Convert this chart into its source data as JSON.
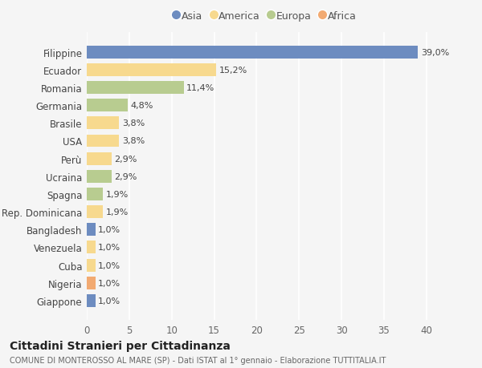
{
  "categories": [
    "Filippine",
    "Ecuador",
    "Romania",
    "Germania",
    "Brasile",
    "USA",
    "Perù",
    "Ucraina",
    "Spagna",
    "Rep. Dominicana",
    "Bangladesh",
    "Venezuela",
    "Cuba",
    "Nigeria",
    "Giappone"
  ],
  "values": [
    39.0,
    15.2,
    11.4,
    4.8,
    3.8,
    3.8,
    2.9,
    2.9,
    1.9,
    1.9,
    1.0,
    1.0,
    1.0,
    1.0,
    1.0
  ],
  "labels": [
    "39,0%",
    "15,2%",
    "11,4%",
    "4,8%",
    "3,8%",
    "3,8%",
    "2,9%",
    "2,9%",
    "1,9%",
    "1,9%",
    "1,0%",
    "1,0%",
    "1,0%",
    "1,0%",
    "1,0%"
  ],
  "continents": [
    "Asia",
    "America",
    "Europa",
    "Europa",
    "America",
    "America",
    "America",
    "Europa",
    "Europa",
    "America",
    "Asia",
    "America",
    "America",
    "Africa",
    "Asia"
  ],
  "colors": {
    "Asia": "#6d8cc0",
    "America": "#f7d98e",
    "Europa": "#b8cc90",
    "Africa": "#f2aa72"
  },
  "legend_order": [
    "Asia",
    "America",
    "Europa",
    "Africa"
  ],
  "title": "Cittadini Stranieri per Cittadinanza",
  "subtitle": "COMUNE DI MONTEROSSO AL MARE (SP) - Dati ISTAT al 1° gennaio - Elaborazione TUTTITALIA.IT",
  "xlim": [
    0,
    42
  ],
  "xticks": [
    0,
    5,
    10,
    15,
    20,
    25,
    30,
    35,
    40
  ],
  "bg_color": "#f5f5f5",
  "grid_color": "#ffffff",
  "bar_height": 0.72
}
